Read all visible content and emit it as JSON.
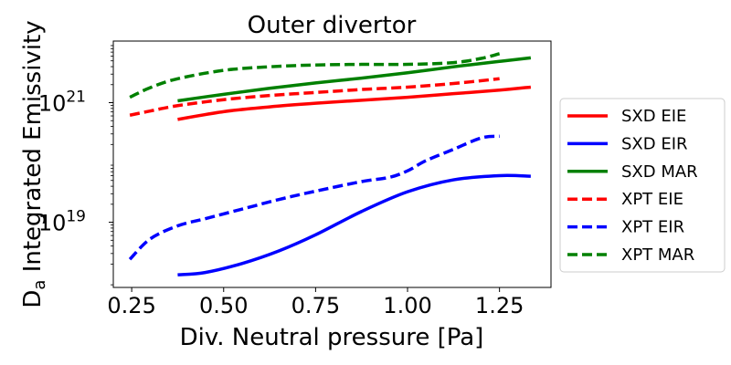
{
  "chart_data": {
    "type": "line",
    "title": "Outer divertor",
    "xlabel": "Div. Neutral pressure [Pa]",
    "ylabel_main": "D",
    "ylabel_sub": "a",
    "ylabel_rest": " Integrated Emissivity",
    "xscale": "linear",
    "yscale": "log",
    "xlim": [
      0.2,
      1.39
    ],
    "ylim_log10": [
      17.91,
      22.03
    ],
    "xticks": [
      {
        "value": 0.25,
        "label": "0.25"
      },
      {
        "value": 0.5,
        "label": "0.50"
      },
      {
        "value": 0.75,
        "label": "0.75"
      },
      {
        "value": 1.0,
        "label": "1.00"
      },
      {
        "value": 1.25,
        "label": "1.25"
      }
    ],
    "yticks": [
      {
        "exponent": 19,
        "base": "10",
        "sup": "19"
      },
      {
        "exponent": 21,
        "base": "10",
        "sup": "21"
      }
    ],
    "legend_position": "right",
    "series": [
      {
        "name": "SXD EIE",
        "color": "#ff0000",
        "dash": "solid",
        "x": [
          0.375,
          0.5,
          0.625,
          0.75,
          0.875,
          1.0,
          1.125,
          1.25,
          1.335
        ],
        "log10_y": [
          20.72,
          20.85,
          20.93,
          20.99,
          21.04,
          21.09,
          21.15,
          21.21,
          21.26
        ]
      },
      {
        "name": "SXD EIR",
        "color": "#0000ff",
        "dash": "solid",
        "x": [
          0.375,
          0.45,
          0.55,
          0.65,
          0.75,
          0.875,
          1.0,
          1.125,
          1.25,
          1.335
        ],
        "log10_y": [
          18.12,
          18.16,
          18.31,
          18.52,
          18.79,
          19.18,
          19.51,
          19.71,
          19.78,
          19.77
        ]
      },
      {
        "name": "SXD MAR",
        "color": "#008000",
        "dash": "solid",
        "x": [
          0.375,
          0.5,
          0.625,
          0.75,
          0.875,
          1.0,
          1.125,
          1.25,
          1.335
        ],
        "log10_y": [
          21.03,
          21.14,
          21.24,
          21.33,
          21.41,
          21.5,
          21.6,
          21.69,
          21.75
        ]
      },
      {
        "name": "XPT EIE",
        "color": "#ff0000",
        "dash": "dashed",
        "x": [
          0.245,
          0.3,
          0.375,
          0.5,
          0.625,
          0.75,
          0.875,
          1.0,
          1.125,
          1.25
        ],
        "log10_y": [
          20.79,
          20.86,
          20.95,
          21.05,
          21.12,
          21.17,
          21.22,
          21.26,
          21.32,
          21.4
        ]
      },
      {
        "name": "XPT EIR",
        "color": "#0000ff",
        "dash": "dashed",
        "x": [
          0.245,
          0.3,
          0.375,
          0.45,
          0.55,
          0.65,
          0.75,
          0.875,
          0.95,
          1.0,
          1.05,
          1.125,
          1.2,
          1.25
        ],
        "log10_y": [
          18.38,
          18.72,
          18.94,
          19.06,
          19.22,
          19.38,
          19.52,
          19.68,
          19.75,
          19.86,
          20.03,
          20.22,
          20.41,
          20.44
        ]
      },
      {
        "name": "XPT MAR",
        "color": "#008000",
        "dash": "dashed",
        "x": [
          0.245,
          0.3,
          0.375,
          0.5,
          0.625,
          0.75,
          0.875,
          1.0,
          1.125,
          1.2,
          1.25
        ],
        "log10_y": [
          21.09,
          21.25,
          21.4,
          21.54,
          21.6,
          21.63,
          21.64,
          21.64,
          21.67,
          21.74,
          21.82
        ]
      }
    ]
  }
}
